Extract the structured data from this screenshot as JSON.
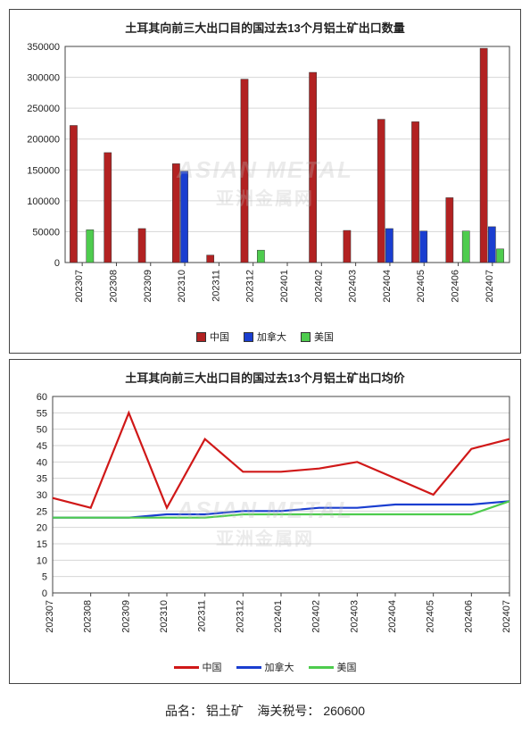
{
  "bar_chart": {
    "type": "bar",
    "title": "土耳其向前三大出口目的国过去13个月铝土矿出口数量",
    "title_fontsize": 13,
    "categories": [
      "202307",
      "202308",
      "202309",
      "202310",
      "202311",
      "202312",
      "202401",
      "202402",
      "202403",
      "202404",
      "202405",
      "202406",
      "202407"
    ],
    "series": [
      {
        "name": "中国",
        "color": "#b22222",
        "values": [
          222000,
          178000,
          55000,
          160000,
          12000,
          297000,
          0,
          308000,
          52000,
          232000,
          228000,
          105000,
          347000
        ]
      },
      {
        "name": "加拿大",
        "color": "#1a3ed0",
        "values": [
          0,
          0,
          0,
          148000,
          0,
          0,
          0,
          0,
          0,
          55000,
          51000,
          0,
          58000
        ]
      },
      {
        "name": "美国",
        "color": "#4ecc4e",
        "values": [
          53000,
          0,
          0,
          0,
          0,
          20000,
          0,
          0,
          0,
          0,
          0,
          51000,
          22000
        ]
      }
    ],
    "ylim": [
      0,
      350000
    ],
    "ytick_step": 50000,
    "grid_color": "#d6d6d6",
    "axis_color": "#444444",
    "background_color": "#ffffff",
    "bar_group_width": 0.72,
    "watermark_en": "ASIAN METAL",
    "watermark_zh": "亚洲金属网"
  },
  "line_chart": {
    "type": "line",
    "title": "土耳其向前三大出口目的国过去13个月铝土矿出口均价",
    "title_fontsize": 13,
    "categories": [
      "202307",
      "202308",
      "202309",
      "202310",
      "202311",
      "202312",
      "202401",
      "202402",
      "202403",
      "202404",
      "202405",
      "202406",
      "202407"
    ],
    "series": [
      {
        "name": "中国",
        "color": "#d01818",
        "values": [
          29,
          26,
          55,
          26,
          47,
          37,
          37,
          38,
          40,
          35,
          30,
          44,
          47
        ]
      },
      {
        "name": "加拿大",
        "color": "#1a3ed0",
        "values": [
          23,
          23,
          23,
          24,
          24,
          25,
          25,
          26,
          26,
          27,
          27,
          27,
          28
        ]
      },
      {
        "name": "美国",
        "color": "#4ecc4e",
        "values": [
          23,
          23,
          23,
          23,
          23,
          24,
          24,
          24,
          24,
          24,
          24,
          24,
          28
        ]
      }
    ],
    "ylim": [
      0,
      60
    ],
    "ytick_step": 5,
    "line_width": 2.2,
    "grid_color": "#d6d6d6",
    "axis_color": "#444444",
    "background_color": "#ffffff",
    "watermark_en": "ASIAN METAL",
    "watermark_zh": "亚洲金属网"
  },
  "footer": {
    "label_name": "品名：",
    "value_name": "铝土矿",
    "label_code": "海关税号：",
    "value_code": "260600"
  }
}
